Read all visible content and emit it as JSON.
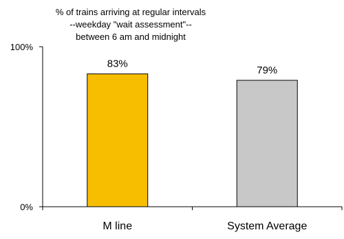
{
  "chart_data": {
    "type": "bar",
    "title_lines": [
      "% of trains arriving at regular intervals",
      "--weekday \"wait assessment\"--",
      "between 6 am and midnight"
    ],
    "categories": [
      "M line",
      "System Average"
    ],
    "values": [
      83,
      79
    ],
    "data_labels": [
      "83%",
      "79%"
    ],
    "bar_colors": [
      "#F7BE00",
      "#C8C8C8"
    ],
    "ylim": [
      0,
      100
    ],
    "y_ticks": [
      {
        "value": 0,
        "label": "0%"
      },
      {
        "value": 100,
        "label": "100%"
      }
    ],
    "xlabel": "",
    "ylabel": "",
    "grid": false,
    "legend": "none"
  }
}
